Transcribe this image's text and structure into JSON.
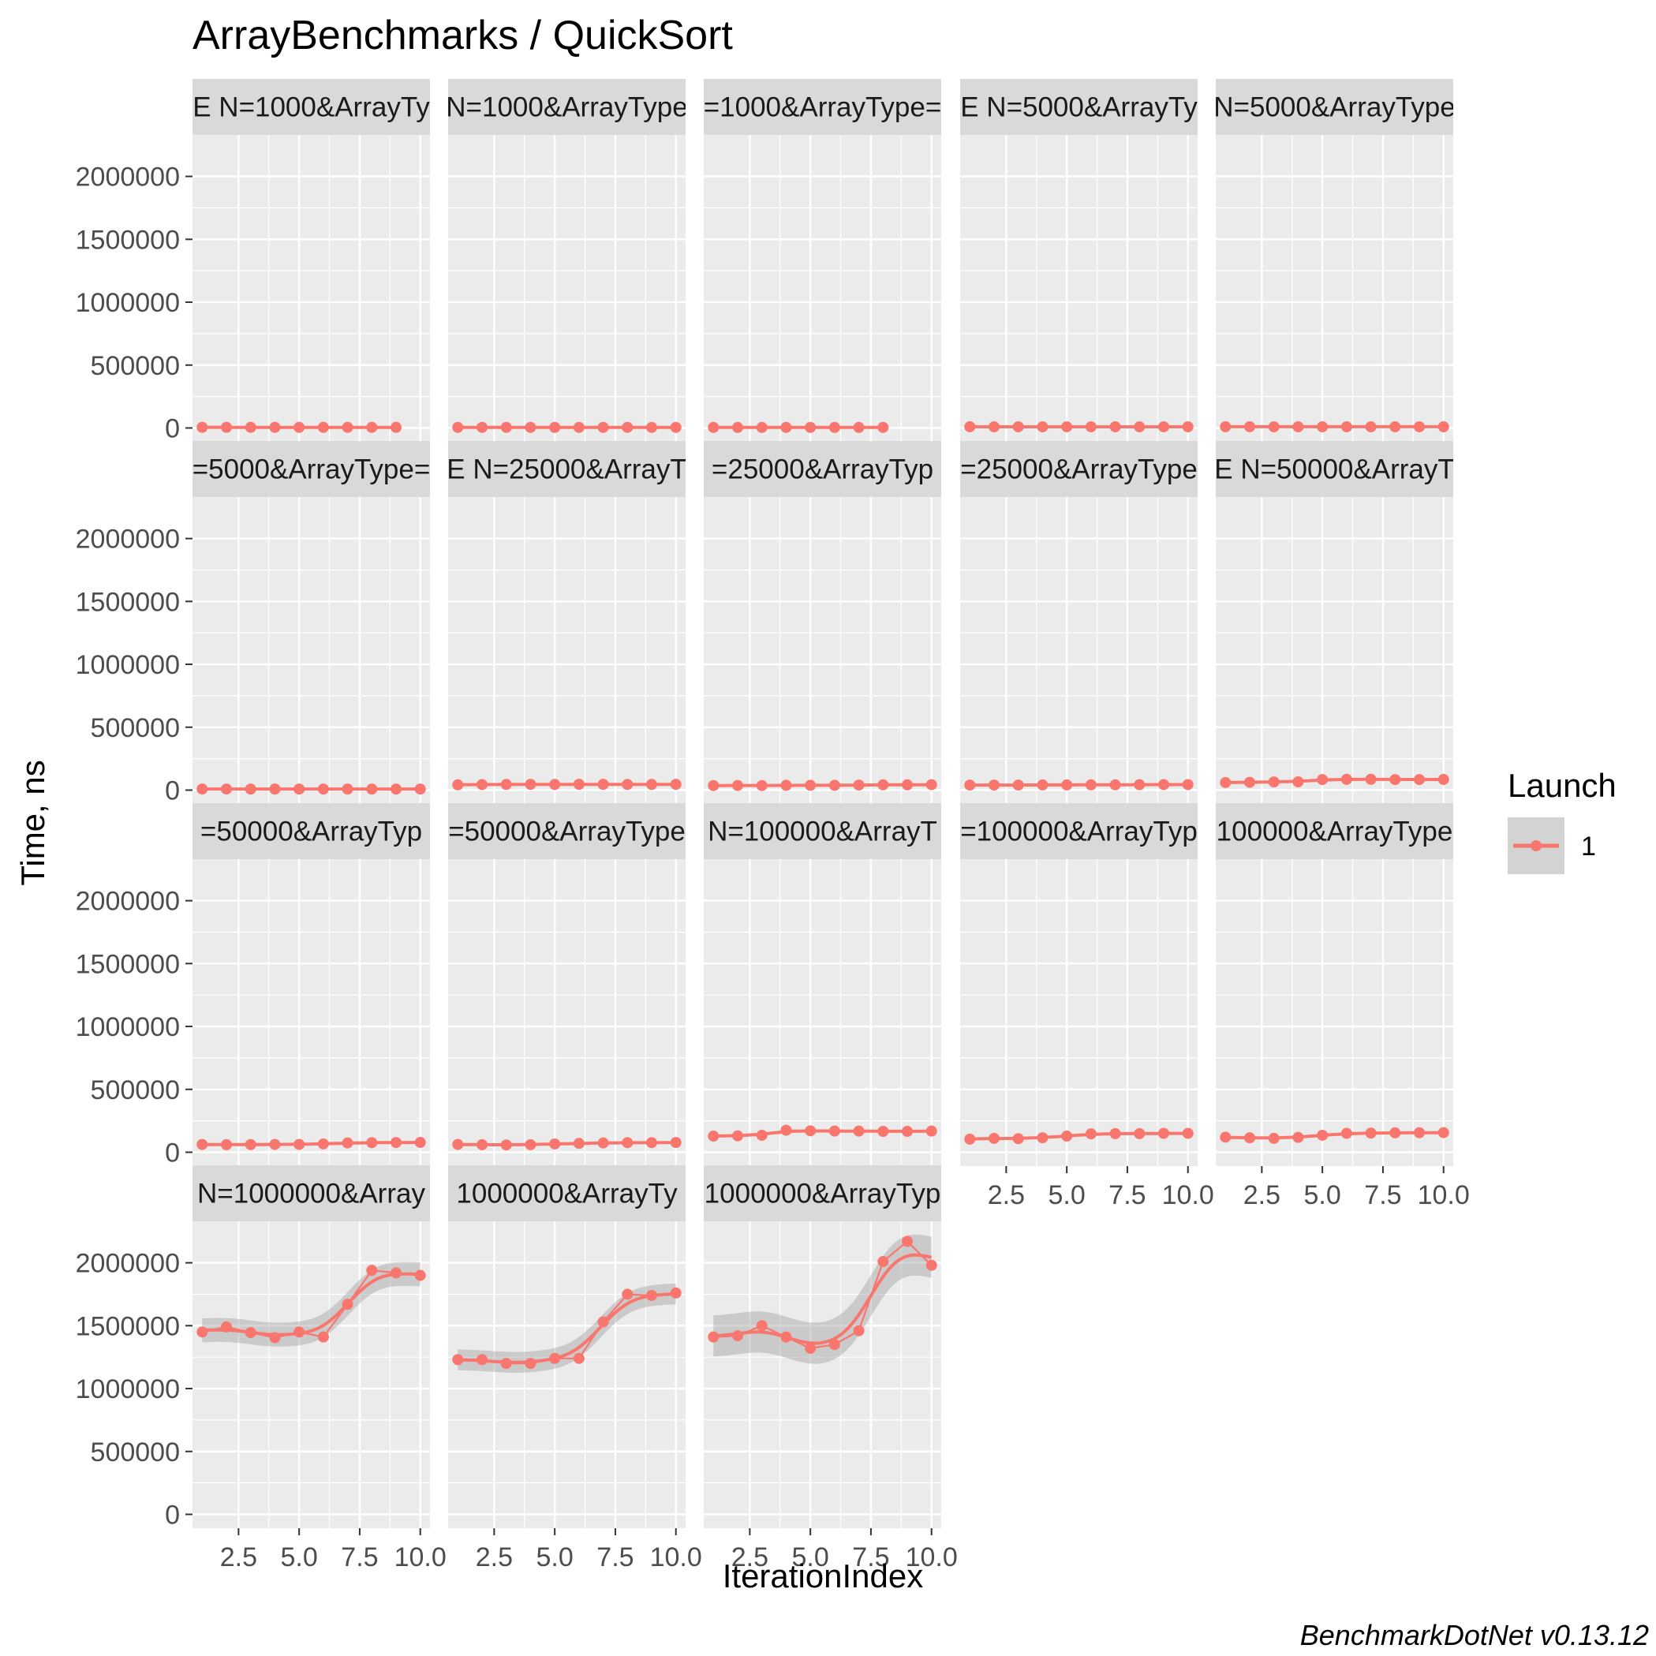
{
  "title": "ArrayBenchmarks / QuickSort",
  "caption": "BenchmarkDotNet v0.13.12",
  "colors": {
    "series": "#F8766D",
    "panel_bg": "#EBEBEB",
    "strip_bg": "#D9D9D9",
    "grid": "#FFFFFF",
    "ribbon": "#999999",
    "legend_key_bg": "#D3D3D3"
  },
  "legend": {
    "title": "Launch",
    "items": [
      {
        "label": "1"
      }
    ],
    "position": "right"
  },
  "chart_data": {
    "type": "line",
    "facet": "wrap",
    "facet_columns": 5,
    "xlabel": "IterationIndex",
    "ylabel": "Time, ns",
    "x_ticks": [
      "2.5",
      "5.0",
      "7.5",
      "10.0"
    ],
    "x_tick_values": [
      2.5,
      5.0,
      7.5,
      10.0
    ],
    "y_ticks": [
      "0",
      "500000",
      "1000000",
      "1500000",
      "2000000"
    ],
    "y_tick_values": [
      0,
      500000,
      1000000,
      1500000,
      2000000
    ],
    "xlim": [
      0.6,
      10.4
    ],
    "ylim": [
      -110000,
      2330000
    ],
    "grid": true,
    "smooth": true,
    "series_name": "1",
    "panels": [
      {
        "strip": "E N=1000&ArrayTy",
        "x": [
          1,
          2,
          3,
          4,
          5,
          6,
          7,
          8,
          9
        ],
        "y": [
          5200,
          5100,
          5000,
          5000,
          4900,
          4900,
          5000,
          5000,
          5000
        ]
      },
      {
        "strip": "N=1000&ArrayType",
        "x": [
          1,
          2,
          3,
          4,
          5,
          6,
          7,
          8,
          9,
          10
        ],
        "y": [
          4700,
          4600,
          4600,
          4600,
          4500,
          4600,
          4600,
          4600,
          4600,
          4600
        ]
      },
      {
        "strip": "=1000&ArrayType=",
        "x": [
          1,
          2,
          3,
          4,
          5,
          6,
          7,
          8
        ],
        "y": [
          4400,
          4300,
          4300,
          4300,
          4300,
          4200,
          4300,
          4300
        ]
      },
      {
        "strip": "E N=5000&ArrayTy",
        "x": [
          1,
          2,
          3,
          4,
          5,
          6,
          7,
          8,
          9,
          10
        ],
        "y": [
          9600,
          9400,
          9300,
          9300,
          9400,
          9300,
          9300,
          9400,
          9300,
          9300
        ]
      },
      {
        "strip": "N=5000&ArrayType",
        "x": [
          1,
          2,
          3,
          4,
          5,
          6,
          7,
          8,
          9,
          10
        ],
        "y": [
          9800,
          9600,
          9500,
          9500,
          9500,
          9500,
          9500,
          9500,
          9500,
          9500
        ]
      },
      {
        "strip": "=5000&ArrayType=",
        "x": [
          1,
          2,
          3,
          4,
          5,
          6,
          7,
          8,
          9,
          10
        ],
        "y": [
          8600,
          8500,
          8400,
          8400,
          8400,
          8400,
          8400,
          8300,
          8300,
          8400
        ]
      },
      {
        "strip": "E N=25000&ArrayT",
        "x": [
          1,
          2,
          3,
          4,
          5,
          6,
          7,
          8,
          9,
          10
        ],
        "y": [
          42000,
          44000,
          45000,
          46000,
          45000,
          46000,
          46000,
          45000,
          45000,
          46000
        ]
      },
      {
        "strip": "=25000&ArrayTyp",
        "x": [
          1,
          2,
          3,
          4,
          5,
          6,
          7,
          8,
          9,
          10
        ],
        "y": [
          36000,
          37000,
          36000,
          38000,
          38000,
          38000,
          40000,
          42000,
          42000,
          43000
        ]
      },
      {
        "strip": "=25000&ArrayType",
        "x": [
          1,
          2,
          3,
          4,
          5,
          6,
          7,
          8,
          9,
          10
        ],
        "y": [
          40000,
          40000,
          40000,
          41000,
          41000,
          42000,
          42000,
          43000,
          44000,
          44000
        ]
      },
      {
        "strip": "E N=50000&ArrayT",
        "x": [
          1,
          2,
          3,
          4,
          5,
          6,
          7,
          8,
          9,
          10
        ],
        "y": [
          60000,
          62000,
          65000,
          66000,
          84000,
          86000,
          86000,
          84000,
          84000,
          85000
        ]
      },
      {
        "strip": "=50000&ArrayTyp",
        "x": [
          1,
          2,
          3,
          4,
          5,
          6,
          7,
          8,
          9,
          10
        ],
        "y": [
          62000,
          60000,
          61000,
          62000,
          62000,
          66000,
          74000,
          76000,
          77000,
          78000
        ]
      },
      {
        "strip": "=50000&ArrayType",
        "x": [
          1,
          2,
          3,
          4,
          5,
          6,
          7,
          8,
          9,
          10
        ],
        "y": [
          62000,
          60000,
          58000,
          60000,
          66000,
          70000,
          74000,
          76000,
          76000,
          77000
        ]
      },
      {
        "strip": "N=100000&ArrayT",
        "x": [
          1,
          2,
          3,
          4,
          5,
          6,
          7,
          8,
          9,
          10
        ],
        "y": [
          128000,
          130000,
          135000,
          175000,
          170000,
          168000,
          168000,
          166000,
          166000,
          168000
        ]
      },
      {
        "strip": "=100000&ArrayTyp",
        "x": [
          1,
          2,
          3,
          4,
          5,
          6,
          7,
          8,
          9,
          10
        ],
        "y": [
          104000,
          110000,
          108000,
          115000,
          128000,
          146000,
          148000,
          148000,
          150000,
          150000
        ]
      },
      {
        "strip": "100000&ArrayType",
        "x": [
          1,
          2,
          3,
          4,
          5,
          6,
          7,
          8,
          9,
          10
        ],
        "y": [
          120000,
          115000,
          110000,
          118000,
          135000,
          150000,
          152000,
          154000,
          155000,
          156000
        ]
      },
      {
        "strip": "N=1000000&Array",
        "x": [
          1,
          2,
          3,
          4,
          5,
          6,
          7,
          8,
          9,
          10
        ],
        "y": [
          1450000,
          1490000,
          1445000,
          1405000,
          1450000,
          1410000,
          1670000,
          1940000,
          1920000,
          1900000
        ]
      },
      {
        "strip": "1000000&ArrayTy",
        "x": [
          1,
          2,
          3,
          4,
          5,
          6,
          7,
          8,
          9,
          10
        ],
        "y": [
          1230000,
          1230000,
          1200000,
          1200000,
          1240000,
          1240000,
          1530000,
          1750000,
          1740000,
          1760000
        ]
      },
      {
        "strip": "1000000&ArrayTyp",
        "x": [
          1,
          2,
          3,
          4,
          5,
          6,
          7,
          8,
          9,
          10
        ],
        "y": [
          1410000,
          1420000,
          1500000,
          1410000,
          1320000,
          1350000,
          1460000,
          2010000,
          2170000,
          1980000
        ]
      }
    ]
  }
}
